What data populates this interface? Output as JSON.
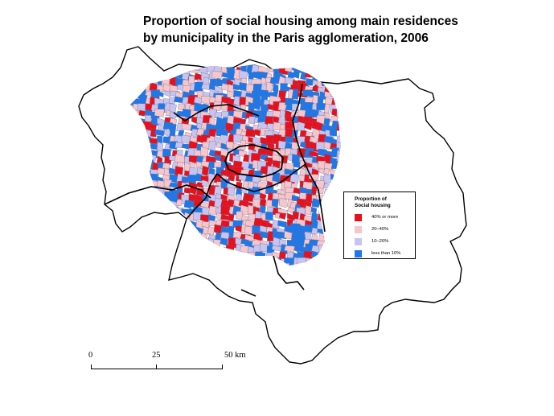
{
  "title": {
    "line1": "Proportion of social housing among main residences",
    "line2": "by municipality in the Paris agglomeration, 2006"
  },
  "legend": {
    "title_line1": "Proportion of",
    "title_line2": "Social housing",
    "items": [
      {
        "label": "40% or more",
        "color": "#e8101c"
      },
      {
        "label": "20–40%",
        "color": "#f7c6cc"
      },
      {
        "label": "10–20%",
        "color": "#c8c4f0"
      },
      {
        "label": "less than 10%",
        "color": "#1f78e8"
      }
    ]
  },
  "scale": {
    "labels": [
      "0",
      "25",
      "50 km"
    ]
  },
  "colors": {
    "region_fill": "#ffffff",
    "outline": "#000000",
    "boundary": "#000000"
  }
}
